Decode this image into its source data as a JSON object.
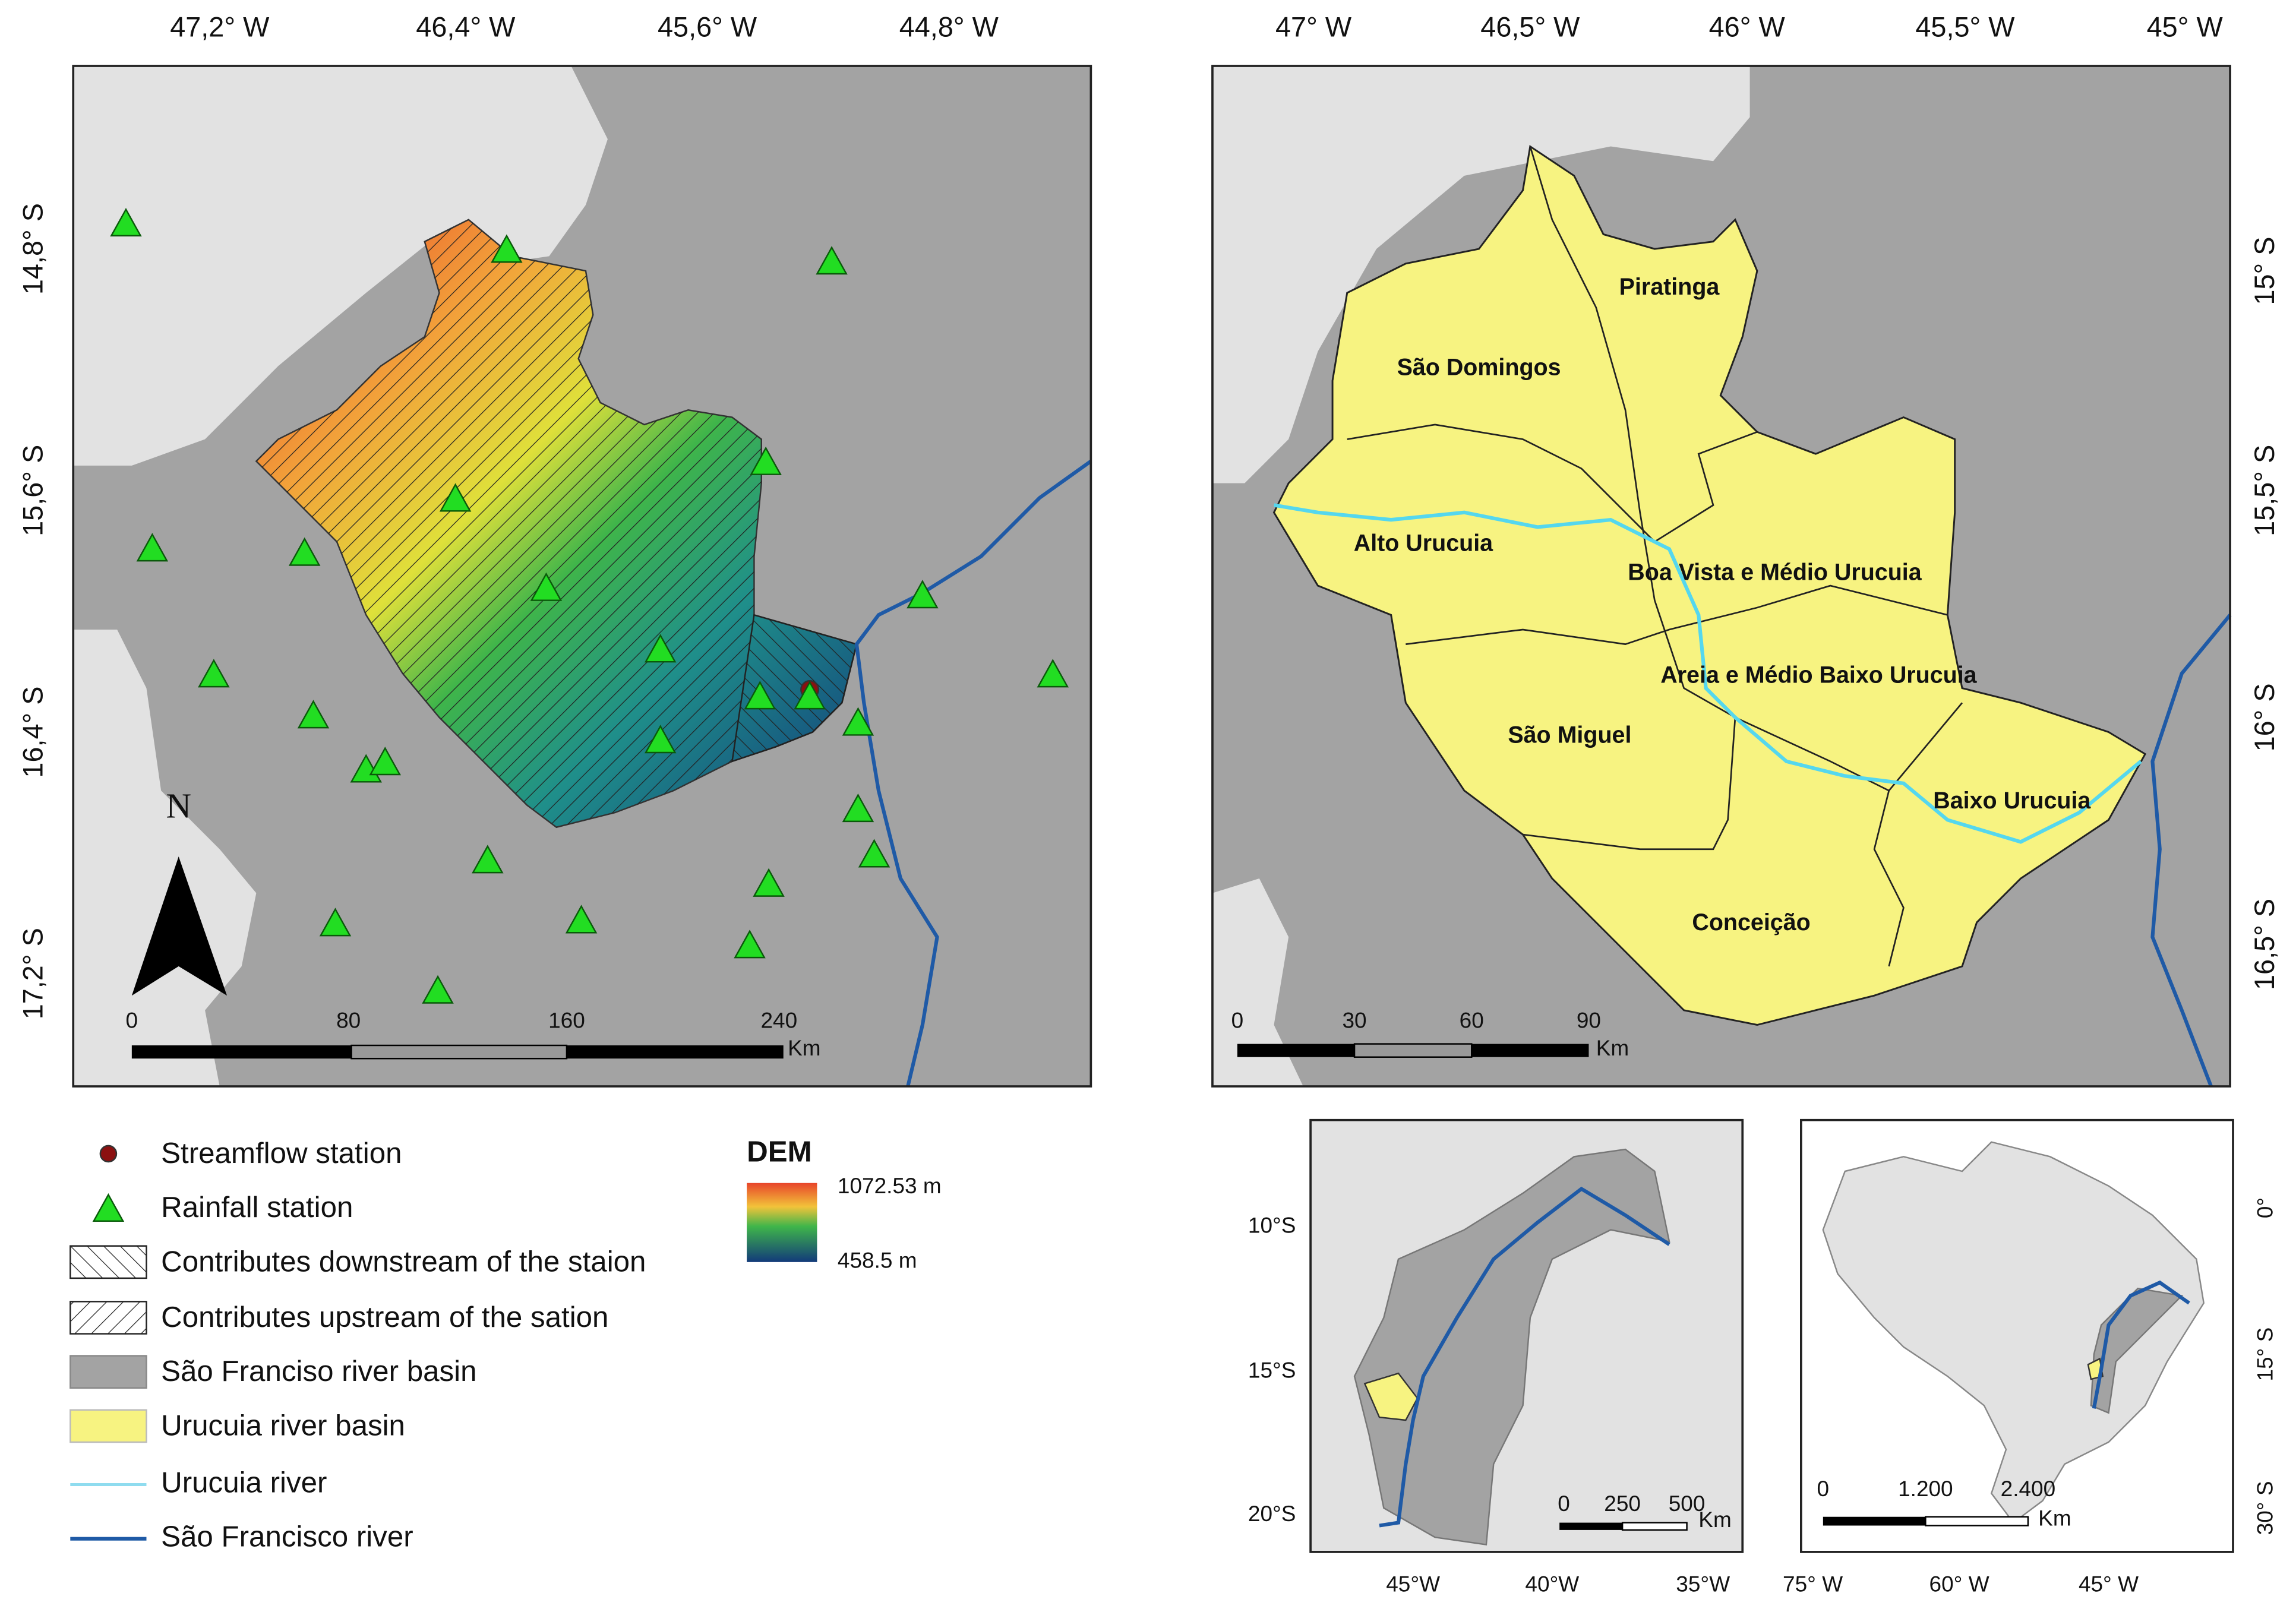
{
  "left_map": {
    "top_labels": [
      "47,2° W",
      "46,4° W",
      "45,6° W",
      "44,8° W"
    ],
    "side_labels": [
      "14,8° S",
      "15,6° S",
      "16,4° S",
      "17,2° S"
    ],
    "north": "N",
    "scale_labels": [
      "0",
      "80",
      "160",
      "240"
    ],
    "scale_unit": "Km"
  },
  "right_map": {
    "top_labels": [
      "47° W",
      "46,5° W",
      "46° W",
      "45,5° W",
      "45° W"
    ],
    "side_labels": [
      "15° S",
      "15,5° S",
      "16° S",
      "16,5° S"
    ],
    "subbasins": [
      "Piratinga",
      "São Domingos",
      "Alto Urucuia",
      "Boa Vista e Médio Urucuia",
      "Areia e Médio Baixo Urucuia",
      "São Miguel",
      "Baixo Urucuia",
      "Conceição"
    ],
    "scale_labels": [
      "0",
      "30",
      "60",
      "90"
    ],
    "scale_unit": "Km"
  },
  "legend": {
    "items": [
      "Streamflow station",
      "Rainfall station",
      "Contributes downstream of the staion",
      "Contributes upstream of the sation",
      "São Franciso river basin",
      "Urucuia river basin",
      "Urucuia river",
      "São Francisco river"
    ],
    "dem_title": "DEM",
    "dem_max": "1072.53 m",
    "dem_min": "458.5 m"
  },
  "inset_basin": {
    "side_labels": [
      "10°S",
      "15°S",
      "20°S"
    ],
    "bottom_labels": [
      "45°W",
      "40°W",
      "35°W"
    ],
    "scale_labels": [
      "0",
      "250",
      "500"
    ],
    "scale_unit": "Km"
  },
  "inset_brazil": {
    "side_labels": [
      "0°",
      "15° S",
      "30° S"
    ],
    "bottom_labels": [
      "75° W",
      "60° W",
      "45° W"
    ],
    "scale_labels": [
      "0",
      "1.200",
      "2.400"
    ],
    "scale_unit": "Km"
  }
}
